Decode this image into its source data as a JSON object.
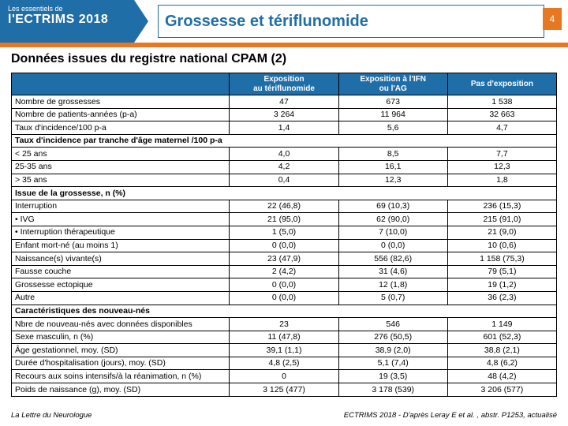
{
  "brand": {
    "pre": "Les essentiels de",
    "main": "l'ECTRIMS 2018"
  },
  "title": "Grossesse et tériflunomide",
  "pageNumber": "4",
  "subtitle": "Données issues du registre national CPAM (2)",
  "columns": [
    "",
    "Exposition\nau  tériflunomide",
    "Exposition à l'IFN\nou l'AG",
    "Pas d'exposition"
  ],
  "rows": [
    {
      "t": "d",
      "l": "Nombre de grossesses",
      "v": [
        "47",
        "673",
        "1 538"
      ]
    },
    {
      "t": "d",
      "l": "Nombre de patients-années (p-a)",
      "v": [
        "3 264",
        "11 964",
        "32 663"
      ]
    },
    {
      "t": "d",
      "l": "Taux d'incidence/100 p-a",
      "v": [
        "1,4",
        "5,6",
        "4,7"
      ]
    },
    {
      "t": "s",
      "l": "Taux d'incidence par tranche d'âge maternel /100 p-a"
    },
    {
      "t": "d",
      "l": "< 25 ans",
      "v": [
        "4,0",
        "8,5",
        "7,7"
      ]
    },
    {
      "t": "d",
      "l": "25-35 ans",
      "v": [
        "4,2",
        "16,1",
        "12,3"
      ]
    },
    {
      "t": "d",
      "l": "> 35 ans",
      "v": [
        "0,4",
        "12,3",
        "1,8"
      ]
    },
    {
      "t": "s",
      "l": "Issue de la grossesse, n (%)"
    },
    {
      "t": "d",
      "l": "Interruption",
      "v": [
        "22 (46,8)",
        "69 (10,3)",
        "236 (15,3)"
      ]
    },
    {
      "t": "d",
      "l": "•  IVG",
      "v": [
        "21 (95,0)",
        "62 (90,0)",
        "215 (91,0)"
      ]
    },
    {
      "t": "d",
      "l": "•  Interruption thérapeutique",
      "v": [
        "1 (5,0)",
        "7 (10,0)",
        "21 (9,0)"
      ]
    },
    {
      "t": "d",
      "l": "Enfant mort-né (au moins 1)",
      "v": [
        "0 (0,0)",
        "0  (0,0)",
        "10 (0,6)"
      ]
    },
    {
      "t": "d",
      "l": "Naissance(s) vivante(s)",
      "v": [
        "23 (47,9)",
        "556 (82,6)",
        "1 158 (75,3)"
      ]
    },
    {
      "t": "d",
      "l": "Fausse couche",
      "v": [
        "2 (4,2)",
        "31 (4,6)",
        "79 (5,1)"
      ]
    },
    {
      "t": "d",
      "l": "Grossesse ectopique",
      "v": [
        "0 (0,0)",
        "12 (1,8)",
        "19 (1,2)"
      ]
    },
    {
      "t": "d",
      "l": "Autre",
      "v": [
        "0 (0,0)",
        "5 (0,7)",
        "36 (2,3)"
      ]
    },
    {
      "t": "s",
      "l": "Caractéristiques des nouveau-nés"
    },
    {
      "t": "d",
      "l": "Nbre de nouveau-nés avec données disponibles",
      "v": [
        "23",
        "546",
        "1 149"
      ]
    },
    {
      "t": "d",
      "l": "Sexe masculin, n (%)",
      "v": [
        "11 (47,8)",
        "276 (50,5)",
        "601 (52,3)"
      ]
    },
    {
      "t": "d",
      "l": "Âge gestationnel, moy. (SD)",
      "v": [
        "39,1 (1,1)",
        "38,9 (2,0)",
        "38,8 (2,1)"
      ]
    },
    {
      "t": "d",
      "l": "Durée d'hospitalisation (jours), moy. (SD)",
      "v": [
        "4,8 (2,5)",
        "5,1 (7,4)",
        "4,8 (6,2)"
      ]
    },
    {
      "t": "d",
      "l": "Recours aux soins intensifs/à la réanimation, n (%)",
      "v": [
        "0",
        "19 (3,5)",
        "48 (4,2)"
      ]
    },
    {
      "t": "d",
      "l": "Poids de naissance (g), moy. (SD)",
      "v": [
        "3 125 (477)",
        "3 178 (539)",
        "3 206 (577)"
      ]
    }
  ],
  "footerLeft": "La Lettre du Neurologue",
  "footerRight": "ECTRIMS 2018 - D'après Leray E et al. , abstr. P1253, actualisé",
  "colors": {
    "blue": "#1f6ea8",
    "orange": "#e87722",
    "white": "#ffffff",
    "black": "#000000"
  },
  "colWidths": [
    "40%",
    "20%",
    "20%",
    "20%"
  ]
}
